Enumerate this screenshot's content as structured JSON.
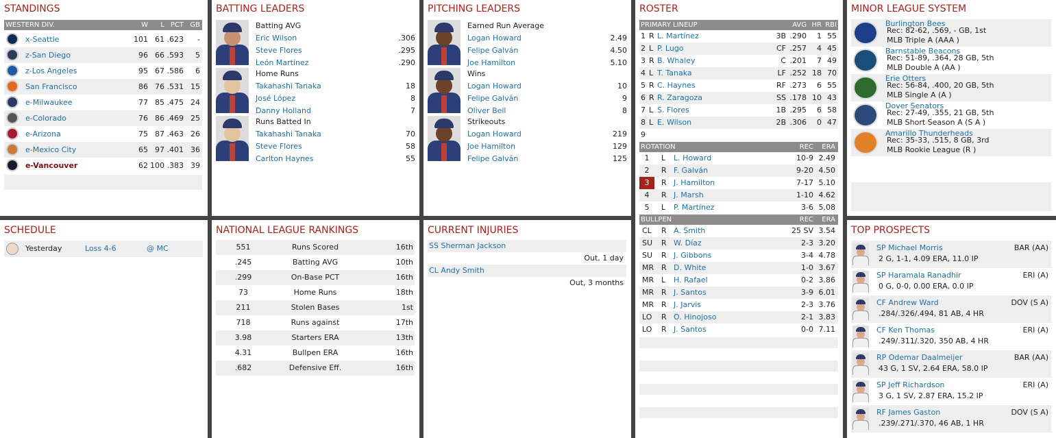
{
  "standings": {
    "title": "STANDINGS",
    "division": "WESTERN DIV.",
    "cols": [
      "W",
      "L",
      "PCT",
      "GB"
    ],
    "rows": [
      {
        "team": "x-Seattle",
        "w": "101",
        "l": "61",
        "pct": ".623",
        "gb": "-",
        "logo_color": "#0c2c56"
      },
      {
        "team": "z-San Diego",
        "w": "96",
        "l": "66",
        "pct": ".593",
        "gb": "5",
        "logo_color": "#2f3b5a"
      },
      {
        "team": "z-Los Angeles",
        "w": "95",
        "l": "67",
        "pct": ".586",
        "gb": "6",
        "logo_color": "#1e5aa8"
      },
      {
        "team": "San Francisco",
        "w": "86",
        "l": "76",
        "pct": ".531",
        "gb": "15",
        "logo_color": "#e56a1e"
      },
      {
        "team": "e-Milwaukee",
        "w": "77",
        "l": "85",
        "pct": ".475",
        "gb": "24",
        "logo_color": "#2b3a6b"
      },
      {
        "team": "e-Colorado",
        "w": "76",
        "l": "86",
        "pct": ".469",
        "gb": "25",
        "logo_color": "#555555"
      },
      {
        "team": "e-Arizona",
        "w": "75",
        "l": "87",
        "pct": ".463",
        "gb": "26",
        "logo_color": "#a71930"
      },
      {
        "team": "e-Mexico City",
        "w": "65",
        "l": "97",
        "pct": ".401",
        "gb": "36",
        "logo_color": "#c77a3a"
      },
      {
        "team": "e-Vancouver",
        "w": "62",
        "l": "100",
        "pct": ".383",
        "gb": "39",
        "logo_color": "#1a1a2e"
      }
    ]
  },
  "batting": {
    "title": "BATTING LEADERS",
    "groups": [
      {
        "label": "Batting AVG",
        "players": [
          {
            "name": "Eric Wilson",
            "val": ".306"
          },
          {
            "name": "Steve Flores",
            "val": ".295"
          },
          {
            "name": "León Martínez",
            "val": ".290"
          }
        ]
      },
      {
        "label": "Home Runs",
        "players": [
          {
            "name": "Takahashi Tanaka",
            "val": "18"
          },
          {
            "name": "José López",
            "val": "8"
          },
          {
            "name": "Danny Holland",
            "val": "7"
          }
        ]
      },
      {
        "label": "Runs Batted In",
        "players": [
          {
            "name": "Takahashi Tanaka",
            "val": "70"
          },
          {
            "name": "Steve Flores",
            "val": "58"
          },
          {
            "name": "Carlton Haynes",
            "val": "55"
          }
        ]
      }
    ]
  },
  "pitching": {
    "title": "PITCHING LEADERS",
    "groups": [
      {
        "label": "Earned Run Average",
        "players": [
          {
            "name": "Logan Howard",
            "val": "2.49"
          },
          {
            "name": "Felipe Galván",
            "val": "4.50"
          },
          {
            "name": "Joe Hamilton",
            "val": "5.10"
          }
        ]
      },
      {
        "label": "Wins",
        "players": [
          {
            "name": "Logan Howard",
            "val": "10"
          },
          {
            "name": "Felipe Galván",
            "val": "9"
          },
          {
            "name": "Oliver Bell",
            "val": "8"
          }
        ]
      },
      {
        "label": "Strikeouts",
        "players": [
          {
            "name": "Logan Howard",
            "val": "219"
          },
          {
            "name": "Joe Hamilton",
            "val": "129"
          },
          {
            "name": "Felipe Galván",
            "val": "125"
          }
        ]
      }
    ]
  },
  "roster": {
    "title": "ROSTER",
    "lineup_header": "PRIMARY LINEUP",
    "lineup_cols": [
      "AVG",
      "HR",
      "RBI"
    ],
    "lineup": [
      {
        "n": "1",
        "h": "R",
        "name": "L. Martínez",
        "pos": "3B",
        "avg": ".290",
        "hr": "1",
        "rbi": "55"
      },
      {
        "n": "2",
        "h": "L",
        "name": "P. Lugo",
        "pos": "CF",
        "avg": ".257",
        "hr": "4",
        "rbi": "45"
      },
      {
        "n": "3",
        "h": "R",
        "name": "B. Whaley",
        "pos": "C",
        "avg": ".201",
        "hr": "7",
        "rbi": "49"
      },
      {
        "n": "4",
        "h": "L",
        "name": "T. Tanaka",
        "pos": "LF",
        "avg": ".252",
        "hr": "18",
        "rbi": "70"
      },
      {
        "n": "5",
        "h": "R",
        "name": "C. Haynes",
        "pos": "RF",
        "avg": ".273",
        "hr": "6",
        "rbi": "55"
      },
      {
        "n": "6",
        "h": "R",
        "name": "R. Zaragoza",
        "pos": "SS",
        "avg": ".178",
        "hr": "10",
        "rbi": "43"
      },
      {
        "n": "7",
        "h": "L",
        "name": "S. Flores",
        "pos": "1B",
        "avg": ".295",
        "hr": "6",
        "rbi": "58"
      },
      {
        "n": "8",
        "h": "L",
        "name": "E. Wilson",
        "pos": "2B",
        "avg": ".306",
        "hr": "0",
        "rbi": "47"
      },
      {
        "n": "9",
        "h": "",
        "name": "",
        "pos": "",
        "avg": "",
        "hr": "",
        "rbi": ""
      }
    ],
    "rotation_header": "ROTATION",
    "rotation_cols": [
      "REC",
      "ERA"
    ],
    "rotation": [
      {
        "n": "1",
        "h": "L",
        "name": "L. Howard",
        "rec": "10-9",
        "era": "2.49"
      },
      {
        "n": "2",
        "h": "R",
        "name": "F. Galván",
        "rec": "9-20",
        "era": "4.50"
      },
      {
        "n": "3",
        "h": "R",
        "name": "J. Hamilton",
        "rec": "7-17",
        "era": "5.10"
      },
      {
        "n": "4",
        "h": "R",
        "name": "J. Marsh",
        "rec": "1-10",
        "era": "4.62"
      },
      {
        "n": "5",
        "h": "L",
        "name": "P. Martínez",
        "rec": "3-6",
        "era": "5.08"
      }
    ],
    "bullpen_header": "BULLPEN",
    "bullpen_cols": [
      "REC",
      "ERA"
    ],
    "bullpen": [
      {
        "role": "CL",
        "h": "R",
        "name": "A. Smith",
        "rec": "25 SV",
        "era": "3.54"
      },
      {
        "role": "SU",
        "h": "R",
        "name": "W. Díaz",
        "rec": "2-3",
        "era": "3.20"
      },
      {
        "role": "SU",
        "h": "R",
        "name": "J. Gibbons",
        "rec": "3-4",
        "era": "4.78"
      },
      {
        "role": "MR",
        "h": "R",
        "name": "D. White",
        "rec": "1-0",
        "era": "3.67"
      },
      {
        "role": "MR",
        "h": "L",
        "name": "H. Rafael",
        "rec": "0-2",
        "era": "3.86"
      },
      {
        "role": "MR",
        "h": "R",
        "name": "J. Santos",
        "rec": "3-9",
        "era": "6.01"
      },
      {
        "role": "MR",
        "h": "R",
        "name": "J. Jarvis",
        "rec": "2-3",
        "era": "3.76"
      },
      {
        "role": "LO",
        "h": "R",
        "name": "O. Hinojoso",
        "rec": "2-1",
        "era": "3.83"
      },
      {
        "role": "LO",
        "h": "R",
        "name": "J. Santos",
        "rec": "0-0",
        "era": "7.11"
      }
    ]
  },
  "minors": {
    "title": "MINOR LEAGUE SYSTEM",
    "teams": [
      {
        "name": "Burlington Bees",
        "rec": "Rec: 82-62, .569, - GB, 1st",
        "level": "MLB Triple A (AAA )",
        "color": "#1d3f8a"
      },
      {
        "name": "Barnstable Beacons",
        "rec": "Rec: 51-89, .364, 28 GB, 5th",
        "level": "MLB Double A (AA )",
        "color": "#1b4f7a"
      },
      {
        "name": "Erie Otters",
        "rec": "Rec: 56-84, .400, 20 GB, 5th",
        "level": "MLB Single A (A )",
        "color": "#2e6b2e"
      },
      {
        "name": "Dover Senators",
        "rec": "Rec: 27-49, .355, 21 GB, 5th",
        "level": "MLB Short Season A (S A )",
        "color": "#2a4a7a"
      },
      {
        "name": "Amarillo Thunderheads",
        "rec": "Rec: 35-33, .515, 8 GB, 3rd",
        "level": "MLB Rookie League (R )",
        "color": "#e0802a"
      }
    ]
  },
  "schedule": {
    "title": "SCHEDULE",
    "items": [
      {
        "day": "Yesterday",
        "result": "Loss 4-6",
        "opp": "@ MC"
      }
    ]
  },
  "rankings": {
    "title": "NATIONAL LEAGUE RANKINGS",
    "rows": [
      {
        "val": "551",
        "stat": "Runs Scored",
        "rank": "16th"
      },
      {
        "val": ".245",
        "stat": "Batting AVG",
        "rank": "10th"
      },
      {
        "val": ".299",
        "stat": "On-Base PCT",
        "rank": "16th"
      },
      {
        "val": "73",
        "stat": "Home Runs",
        "rank": "18th"
      },
      {
        "val": "211",
        "stat": "Stolen Bases",
        "rank": "1st"
      },
      {
        "val": "718",
        "stat": "Runs against",
        "rank": "17th"
      },
      {
        "val": "3.98",
        "stat": "Starters ERA",
        "rank": "13th"
      },
      {
        "val": "4.31",
        "stat": "Bullpen ERA",
        "rank": "16th"
      },
      {
        "val": ".682",
        "stat": "Defensive Eff.",
        "rank": "16th"
      }
    ]
  },
  "injuries": {
    "title": "CURRENT INJURIES",
    "items": [
      {
        "player": "SS Sherman Jackson",
        "status": "Out, 1 day"
      },
      {
        "player": "CL Andy Smith",
        "status": "Out, 3 months"
      }
    ]
  },
  "prospects": {
    "title": "TOP PROSPECTS",
    "items": [
      {
        "name": "SP Michael Morris",
        "team": "BAR (AA)",
        "stats": "2 G, 1-1, 4.09 ERA, 11.0 IP"
      },
      {
        "name": "SP Haramala Ranadhir",
        "team": "ERI (A)",
        "stats": "0 G, 0-0, 0.00 ERA, 0.0 IP"
      },
      {
        "name": "CF Andrew Ward",
        "team": "DOV (S A)",
        "stats": ".284/.326/.494, 81 AB, 4 HR"
      },
      {
        "name": "CF Ken Thomas",
        "team": "ERI (A)",
        "stats": ".249/.311/.320, 350 AB, 4 HR"
      },
      {
        "name": "RP Odemar Daalmeijer",
        "team": "BAR (AA)",
        "stats": "43 G, 1 SV, 2.64 ERA, 58.0 IP"
      },
      {
        "name": "SP Jeff Richardson",
        "team": "ERI (A)",
        "stats": "3 G, 1 SV, 2.87 ERA, 15.2 IP"
      },
      {
        "name": "RF James Gaston",
        "team": "DOV (S A)",
        "stats": ".239/.271/.370, 46 AB, 1 HR"
      }
    ]
  },
  "colors": {
    "accent": "#a3241b",
    "link": "#1f6fa8",
    "header_gray": "#8c8c8c"
  }
}
